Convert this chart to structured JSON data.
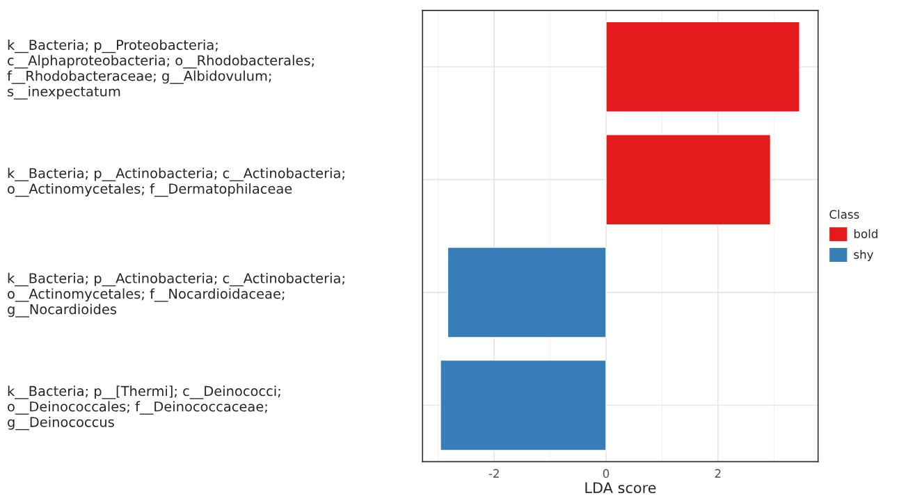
{
  "chart_data": {
    "type": "bar",
    "orientation": "horizontal",
    "categories": [
      "k__Bacteria; p__Proteobacteria;\nc__Alphaproteobacteria; o__Rhodobacterales;\nf__Rhodobacteraceae; g__Albidovulum;\ns__inexpectatum",
      "k__Bacteria; p__Actinobacteria; c__Actinobacteria;\no__Actinomycetales; f__Dermatophilaceae",
      "k__Bacteria; p__Actinobacteria; c__Actinobacteria;\no__Actinomycetales; f__Nocardioidaceae;\ng__Nocardioides",
      "k__Bacteria; p__[Thermi]; c__Deinococci;\no__Deinococcales; f__Deinococcaceae;\ng__Deinococcus"
    ],
    "series": [
      {
        "name": "bold",
        "color": "#e41a1c",
        "values": [
          3.46,
          2.94,
          null,
          null
        ]
      },
      {
        "name": "shy",
        "color": "#377eb8",
        "values": [
          null,
          null,
          -2.83,
          -2.96
        ]
      }
    ],
    "xlabel": "LDA score",
    "legend_title": "Class",
    "legend": "right",
    "xlim": [
      -3.28,
      3.79
    ],
    "xticks": [
      -2,
      0,
      2
    ],
    "grid": true
  }
}
